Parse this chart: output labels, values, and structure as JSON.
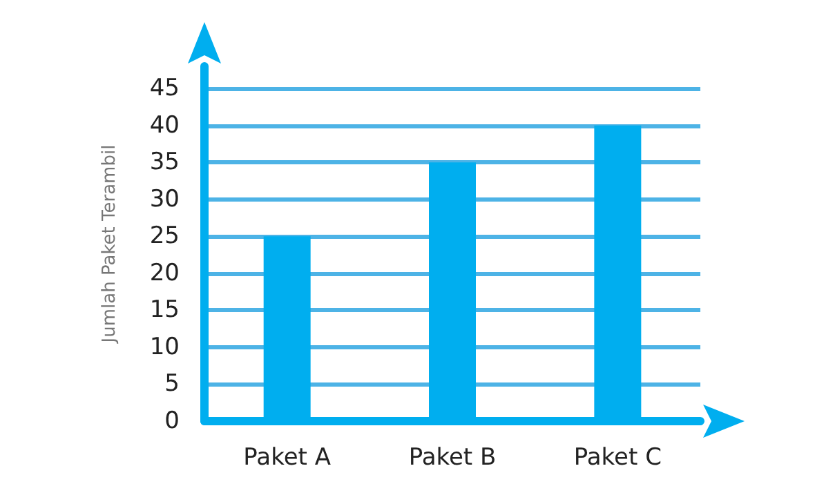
{
  "chart_data": {
    "type": "bar",
    "ylabel": "Jumlah Paket Terambil",
    "categories": [
      "Paket A",
      "Paket B",
      "Paket C"
    ],
    "values": [
      25,
      35,
      40
    ],
    "color": "#00aeef",
    "ylim": [
      0,
      48
    ],
    "yticks": [
      0,
      5,
      10,
      15,
      20,
      25,
      30,
      35,
      40,
      45
    ],
    "grid": "y"
  }
}
